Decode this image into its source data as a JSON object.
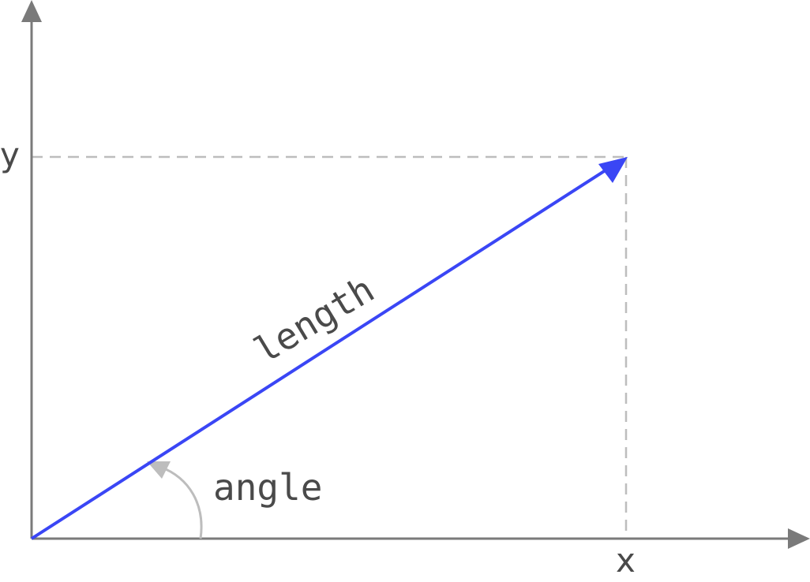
{
  "diagram": {
    "axis_x_label": "x",
    "axis_y_label": "y",
    "vector_label": "length",
    "angle_label": "angle"
  },
  "colors": {
    "axis": "#7a7a7a",
    "vector": "#3a46f5",
    "guide": "#bdbdbd",
    "text": "#4a4a4a"
  }
}
